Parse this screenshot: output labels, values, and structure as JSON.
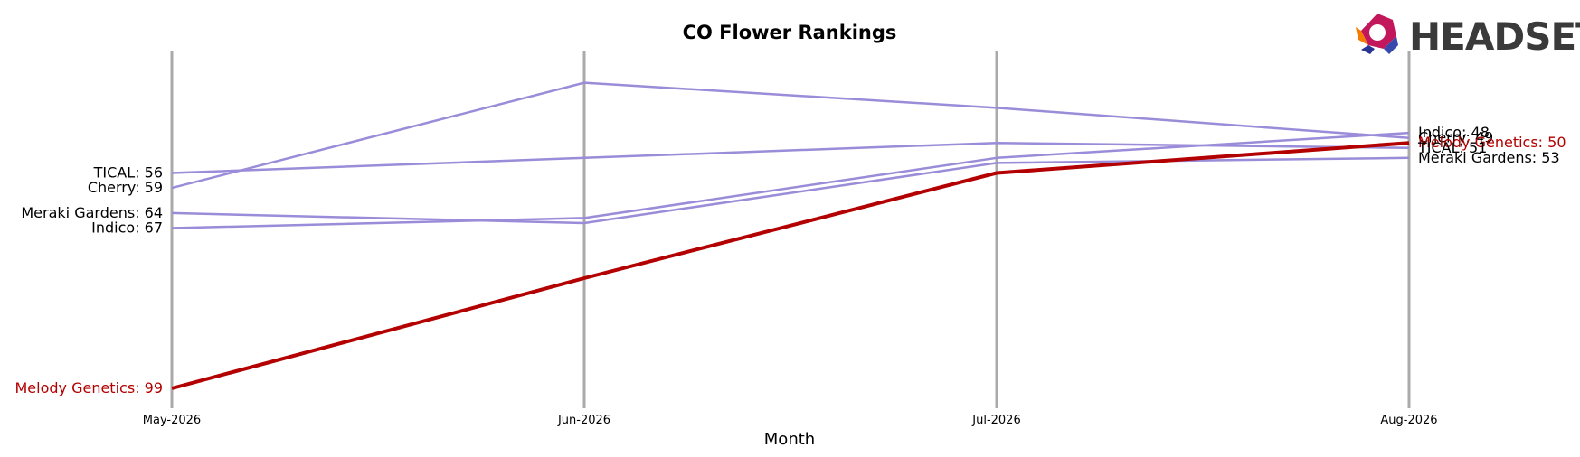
{
  "chart_data": {
    "type": "line",
    "title": "CO Flower Rankings",
    "xlabel": "Month",
    "ylabel": "",
    "x": [
      "May-2026",
      "Jun-2026",
      "Jul-2026",
      "Aug-2026"
    ],
    "y_axis": "rank (inverted, 1 at top)",
    "ylim": [
      99,
      35
    ],
    "grid": "vertical lines at each month",
    "legend": "none; series labeled at line ends",
    "highlight_color": "#b30000",
    "muted_color": "#9a8cd8",
    "series": [
      {
        "name": "TICAL",
        "values": [
          56,
          53,
          50,
          51
        ],
        "highlight": false
      },
      {
        "name": "Cherry",
        "values": [
          59,
          38,
          43,
          49
        ],
        "highlight": false
      },
      {
        "name": "Meraki Gardens",
        "values": [
          64,
          66,
          54,
          53
        ],
        "highlight": false
      },
      {
        "name": "Indico",
        "values": [
          67,
          65,
          53,
          48
        ],
        "highlight": false
      },
      {
        "name": "Melody Genetics",
        "values": [
          99,
          77,
          56,
          50
        ],
        "highlight": true
      }
    ],
    "start_labels": [
      "TICAL: 56",
      "Cherry: 59",
      "Meraki Gardens: 64",
      "Indico: 67",
      "Melody Genetics: 99"
    ],
    "end_labels": [
      "Indico: 48",
      "Cherry: 49",
      "Melody Genetics: 50",
      "TICAL: 51",
      "Meraki Gardens: 53"
    ]
  },
  "logo": {
    "text": "HEADSET"
  }
}
